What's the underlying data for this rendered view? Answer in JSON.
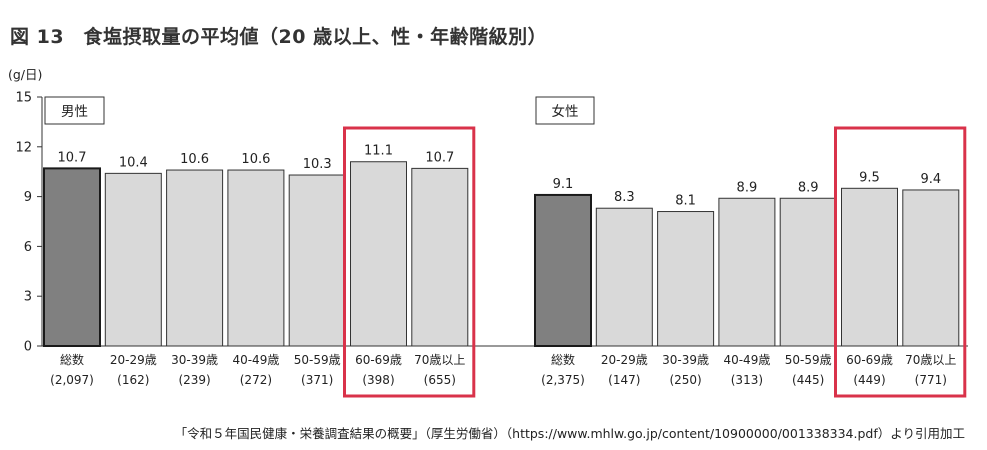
{
  "title": "図 13　食塩摂取量の平均値（20 歳以上、性・年齢階級別）",
  "source": "「令和５年国民健康・栄養調査結果の概要」（厚生労働省）（https://www.mhlw.go.jp/content/10900000/001338334.pdf）より引用加工",
  "colors": {
    "total_bar": "#808080",
    "group_bar": "#d9d9d9",
    "highlight": "#d9324a"
  },
  "chart_data": [
    {
      "type": "bar",
      "panel": "男性",
      "ylabel": "(g/日)",
      "ylim": [
        0,
        15
      ],
      "yticks": [
        0,
        3,
        6,
        9,
        12,
        15
      ],
      "categories": [
        "総数",
        "20-29歳",
        "30-39歳",
        "40-49歳",
        "50-59歳",
        "60-69歳",
        "70歳以上"
      ],
      "counts": [
        "(2,097)",
        "(162)",
        "(239)",
        "(272)",
        "(371)",
        "(398)",
        "(655)"
      ],
      "values": [
        10.7,
        10.4,
        10.6,
        10.6,
        10.3,
        11.1,
        10.7
      ],
      "value_labels": [
        "10.7",
        "10.4",
        "10.6",
        "10.6",
        "10.3",
        "11.1",
        "10.7"
      ],
      "highlighted": [
        "60-69歳",
        "70歳以上"
      ],
      "grid": false
    },
    {
      "type": "bar",
      "panel": "女性",
      "ylabel": "(g/日)",
      "ylim": [
        0,
        15
      ],
      "yticks": [
        0,
        3,
        6,
        9,
        12,
        15
      ],
      "categories": [
        "総数",
        "20-29歳",
        "30-39歳",
        "40-49歳",
        "50-59歳",
        "60-69歳",
        "70歳以上"
      ],
      "counts": [
        "(2,375)",
        "(147)",
        "(250)",
        "(313)",
        "(445)",
        "(449)",
        "(771)"
      ],
      "values": [
        9.1,
        8.3,
        8.1,
        8.9,
        8.9,
        9.5,
        9.4
      ],
      "value_labels": [
        "9.1",
        "8.3",
        "8.1",
        "8.9",
        "8.9",
        "9.5",
        "9.4"
      ],
      "highlighted": [
        "60-69歳",
        "70歳以上"
      ],
      "grid": false
    }
  ]
}
